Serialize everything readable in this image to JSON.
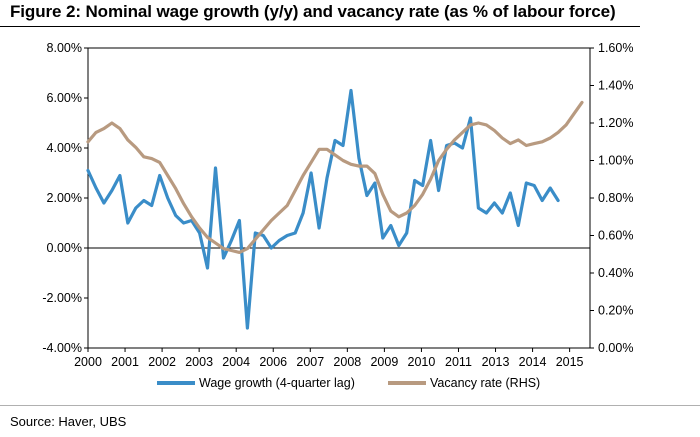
{
  "title": "Figure 2: Nominal wage growth (y/y) and vacancy rate (as % of labour force)",
  "source": "Source: Haver, UBS",
  "chart_data": {
    "type": "line",
    "title": "Figure 2: Nominal wage growth (y/y) and vacancy rate (as % of labour force)",
    "x_tick_labels": [
      "2000",
      "2001",
      "2002",
      "2003",
      "2004",
      "2006",
      "2007",
      "2008",
      "2009",
      "2010",
      "2011",
      "2013",
      "2014",
      "2015"
    ],
    "xlim": [
      2000,
      2015.75
    ],
    "y_left": {
      "lim": [
        -4,
        8
      ],
      "ticks": [
        8,
        6,
        4,
        2,
        0,
        -2,
        -4
      ],
      "tick_labels": [
        "8.00%",
        "6.00%",
        "4.00%",
        "2.00%",
        "0.00%",
        "-2.00%",
        "-4.00%"
      ]
    },
    "y_right": {
      "lim": [
        0,
        1.6
      ],
      "ticks": [
        1.6,
        1.4,
        1.2,
        1.0,
        0.8,
        0.6,
        0.4,
        0.2,
        0.0
      ],
      "tick_labels": [
        "1.60%",
        "1.40%",
        "1.20%",
        "1.00%",
        "0.80%",
        "0.60%",
        "0.40%",
        "0.20%",
        "0.00%"
      ]
    },
    "zero_line": true,
    "grid": false,
    "legend_position": "bottom",
    "colors": {
      "wage": "#3a8dc8",
      "vacancy": "#b89a80"
    },
    "series": [
      {
        "name": "Wage growth (4-quarter lag)",
        "axis": "left",
        "x": [
          2000.0,
          2000.25,
          2000.5,
          2000.75,
          2001.0,
          2001.25,
          2001.5,
          2001.75,
          2002.0,
          2002.25,
          2002.5,
          2002.75,
          2003.0,
          2003.25,
          2003.5,
          2003.75,
          2004.0,
          2004.25,
          2004.5,
          2004.75,
          2005.0,
          2005.25,
          2005.5,
          2005.75,
          2006.0,
          2006.25,
          2006.5,
          2006.75,
          2007.0,
          2007.25,
          2007.5,
          2007.75,
          2008.0,
          2008.25,
          2008.5,
          2008.75,
          2009.0,
          2009.25,
          2009.5,
          2009.75,
          2010.0,
          2010.25,
          2010.5,
          2010.75,
          2011.0,
          2011.25,
          2011.5,
          2011.75,
          2012.0,
          2012.25,
          2012.5,
          2012.75,
          2013.0,
          2013.25,
          2013.5,
          2013.75,
          2014.0,
          2014.25,
          2014.5,
          2014.75
        ],
        "values": [
          3.1,
          2.4,
          1.8,
          2.3,
          2.9,
          1.0,
          1.6,
          1.9,
          1.7,
          2.9,
          2.0,
          1.3,
          1.0,
          1.1,
          0.6,
          -0.8,
          3.2,
          -0.4,
          0.3,
          1.1,
          -3.2,
          0.6,
          0.5,
          0.0,
          0.3,
          0.5,
          0.6,
          1.4,
          3.0,
          0.8,
          2.8,
          4.3,
          4.1,
          6.3,
          3.6,
          2.1,
          2.6,
          0.4,
          0.9,
          0.1,
          0.6,
          2.7,
          2.5,
          4.3,
          2.3,
          4.1,
          4.2,
          4.0,
          5.2,
          1.6,
          1.4,
          1.8,
          1.4,
          2.2,
          0.9,
          2.6,
          2.5,
          1.9,
          2.4,
          1.9
        ]
      },
      {
        "name": "Vacancy rate (RHS)",
        "axis": "right",
        "x": [
          2000.0,
          2000.25,
          2000.5,
          2000.75,
          2001.0,
          2001.25,
          2001.5,
          2001.75,
          2002.0,
          2002.25,
          2002.5,
          2002.75,
          2003.0,
          2003.25,
          2003.5,
          2003.75,
          2004.0,
          2004.25,
          2004.5,
          2004.75,
          2005.0,
          2005.25,
          2005.5,
          2005.75,
          2006.0,
          2006.25,
          2006.5,
          2006.75,
          2007.0,
          2007.25,
          2007.5,
          2007.75,
          2008.0,
          2008.25,
          2008.5,
          2008.75,
          2009.0,
          2009.25,
          2009.5,
          2009.75,
          2010.0,
          2010.25,
          2010.5,
          2010.75,
          2011.0,
          2011.25,
          2011.5,
          2011.75,
          2012.0,
          2012.25,
          2012.5,
          2012.75,
          2013.0,
          2013.25,
          2013.5,
          2013.75,
          2014.0,
          2014.25,
          2014.5,
          2014.75,
          2015.0,
          2015.25,
          2015.5
        ],
        "values": [
          1.1,
          1.15,
          1.17,
          1.2,
          1.17,
          1.11,
          1.07,
          1.02,
          1.01,
          0.99,
          0.92,
          0.85,
          0.77,
          0.7,
          0.64,
          0.59,
          0.56,
          0.53,
          0.52,
          0.51,
          0.53,
          0.58,
          0.63,
          0.68,
          0.72,
          0.76,
          0.84,
          0.92,
          0.99,
          1.06,
          1.06,
          1.03,
          1.0,
          0.98,
          0.97,
          0.97,
          0.93,
          0.82,
          0.73,
          0.7,
          0.72,
          0.76,
          0.82,
          0.9,
          1.0,
          1.06,
          1.11,
          1.15,
          1.19,
          1.2,
          1.19,
          1.16,
          1.12,
          1.09,
          1.11,
          1.08,
          1.09,
          1.1,
          1.12,
          1.15,
          1.19,
          1.25,
          1.31
        ]
      }
    ]
  }
}
